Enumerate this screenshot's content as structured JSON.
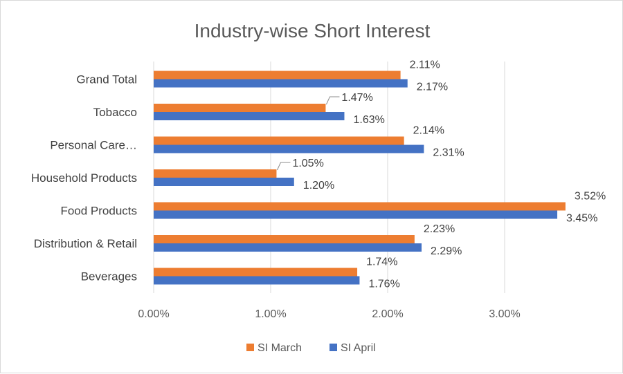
{
  "chart_data": {
    "type": "bar",
    "orientation": "horizontal",
    "title": "Industry-wise Short Interest",
    "categories": [
      "Grand Total",
      "Tobacco",
      "Personal Care…",
      "Household Products",
      "Food Products",
      "Distribution & Retail",
      "Beverages"
    ],
    "series": [
      {
        "name": "SI March",
        "color": "#ed7d31",
        "values": [
          2.11,
          1.47,
          2.14,
          1.05,
          3.52,
          2.23,
          1.74
        ],
        "labels": [
          "2.11%",
          "1.47%",
          "2.14%",
          "1.05%",
          "3.52%",
          "2.23%",
          "1.74%"
        ]
      },
      {
        "name": "SI April",
        "color": "#4472c4",
        "values": [
          2.17,
          1.63,
          2.31,
          1.2,
          3.45,
          2.29,
          1.76
        ],
        "labels": [
          "2.17%",
          "1.63%",
          "2.31%",
          "1.20%",
          "3.45%",
          "2.29%",
          "1.76%"
        ]
      }
    ],
    "xlim": [
      0,
      4
    ],
    "xticks": [
      0,
      1,
      2,
      3
    ],
    "xtick_labels": [
      "0.00%",
      "1.00%",
      "2.00%",
      "3.00%"
    ],
    "grid": true,
    "legend_position": "bottom"
  }
}
